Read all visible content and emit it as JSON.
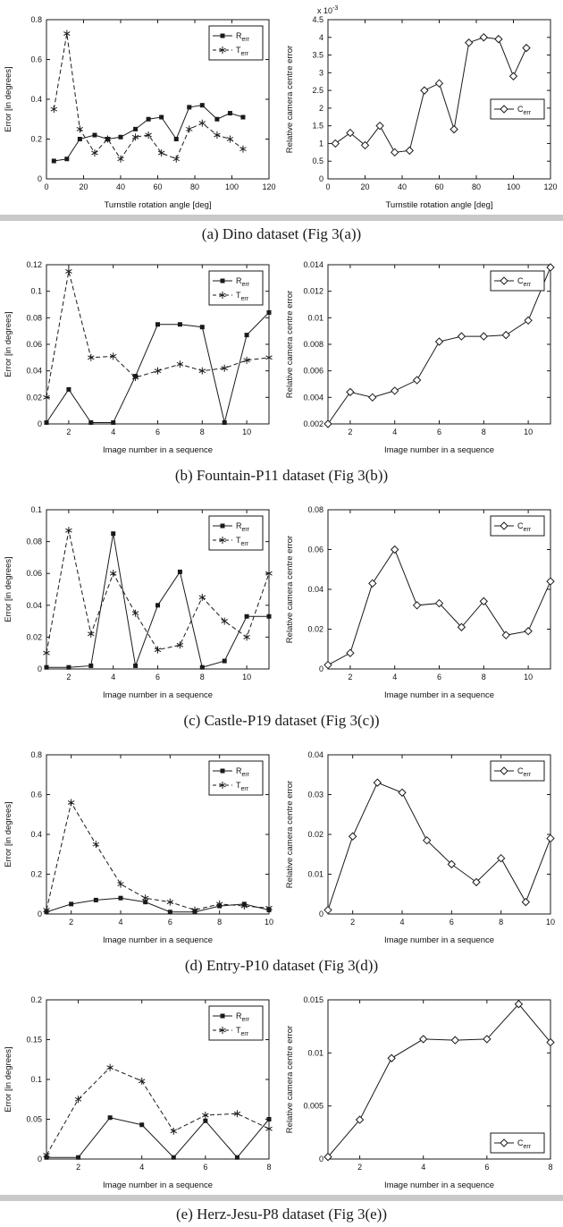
{
  "style": {
    "line_color": "#1a1a1a",
    "background": "#ffffff",
    "separator": "#c9c9c9"
  },
  "captions": [
    "(a) Dino dataset (Fig 3(a))",
    "(b) Fountain-P11 dataset (Fig 3(b))",
    "(c) Castle-P19 dataset (Fig 3(c))",
    "(d) Entry-P10 dataset (Fig 3(d))",
    "(e) Herz-Jesu-P8 dataset (Fig 3(e))"
  ],
  "chart_data": [
    {
      "type": "line",
      "title": "",
      "xlabel": "Turnstile rotation angle [deg]",
      "ylabel": "Error [in degrees]",
      "xlim": [
        0,
        120
      ],
      "ylim": [
        0,
        0.8
      ],
      "xticks": [
        0,
        20,
        40,
        60,
        80,
        100,
        120
      ],
      "yticks": [
        0,
        0.2,
        0.4,
        0.6,
        0.8
      ],
      "legend": {
        "pos": "top-right"
      },
      "series": [
        {
          "name": "R_err",
          "marker": "square",
          "line": "solid",
          "x": [
            4,
            11,
            18,
            26,
            33,
            40,
            48,
            55,
            62,
            70,
            77,
            84,
            92,
            99,
            106
          ],
          "y": [
            0.09,
            0.1,
            0.2,
            0.22,
            0.2,
            0.21,
            0.25,
            0.3,
            0.31,
            0.2,
            0.36,
            0.37,
            0.3,
            0.33,
            0.31
          ]
        },
        {
          "name": "T_err",
          "marker": "asterisk",
          "line": "dashed",
          "x": [
            4,
            11,
            18,
            26,
            33,
            40,
            48,
            55,
            62,
            70,
            77,
            84,
            92,
            99,
            106
          ],
          "y": [
            0.35,
            0.73,
            0.25,
            0.13,
            0.2,
            0.1,
            0.21,
            0.22,
            0.13,
            0.1,
            0.25,
            0.28,
            0.22,
            0.2,
            0.15
          ]
        }
      ]
    },
    {
      "type": "line",
      "title": "",
      "xlabel": "Turnstile rotation angle [deg]",
      "ylabel": "Relative camera centre error",
      "y_exponent": "x 10^-3",
      "xlim": [
        0,
        120
      ],
      "ylim": [
        0,
        4.5
      ],
      "xticks": [
        0,
        20,
        40,
        60,
        80,
        100,
        120
      ],
      "yticks": [
        0,
        0.5,
        1,
        1.5,
        2,
        2.5,
        3,
        3.5,
        4,
        4.5
      ],
      "legend": {
        "pos": "mid-right"
      },
      "series": [
        {
          "name": "C_err",
          "marker": "diamond",
          "line": "solid",
          "x": [
            4,
            12,
            20,
            28,
            36,
            44,
            52,
            60,
            68,
            76,
            84,
            92,
            100,
            107
          ],
          "y": [
            1.0,
            1.3,
            0.95,
            1.5,
            0.75,
            0.8,
            2.5,
            2.7,
            1.4,
            3.85,
            4.0,
            3.95,
            2.9,
            3.7
          ]
        }
      ]
    },
    {
      "type": "line",
      "title": "",
      "xlabel": "Image number in a sequence",
      "ylabel": "Error [in degrees]",
      "xlim": [
        1,
        11
      ],
      "ylim": [
        0,
        0.12
      ],
      "xticks": [
        2,
        4,
        6,
        8,
        10
      ],
      "yticks": [
        0,
        0.02,
        0.04,
        0.06,
        0.08,
        0.1,
        0.12
      ],
      "legend": {
        "pos": "top-right"
      },
      "series": [
        {
          "name": "R_err",
          "marker": "square",
          "line": "solid",
          "x": [
            1,
            2,
            3,
            4,
            5,
            6,
            7,
            8,
            9,
            10,
            11
          ],
          "y": [
            0.001,
            0.026,
            0.001,
            0.001,
            0.036,
            0.075,
            0.075,
            0.073,
            0.001,
            0.067,
            0.084
          ]
        },
        {
          "name": "T_err",
          "marker": "asterisk",
          "line": "dashed",
          "x": [
            1,
            2,
            3,
            4,
            5,
            6,
            7,
            8,
            9,
            10,
            11
          ],
          "y": [
            0.02,
            0.115,
            0.05,
            0.051,
            0.035,
            0.04,
            0.045,
            0.04,
            0.042,
            0.048,
            0.05
          ]
        }
      ]
    },
    {
      "type": "line",
      "title": "",
      "xlabel": "Image number in a sequence",
      "ylabel": "Relative camera centre error",
      "xlim": [
        1,
        11
      ],
      "ylim": [
        0.002,
        0.014
      ],
      "xticks": [
        2,
        4,
        6,
        8,
        10
      ],
      "yticks": [
        0.002,
        0.004,
        0.006,
        0.008,
        0.01,
        0.012,
        0.014
      ],
      "legend": {
        "pos": "top-right"
      },
      "series": [
        {
          "name": "C_err",
          "marker": "diamond",
          "line": "solid",
          "x": [
            1,
            2,
            3,
            4,
            5,
            6,
            7,
            8,
            9,
            10,
            11
          ],
          "y": [
            0.002,
            0.0044,
            0.004,
            0.0045,
            0.0053,
            0.0082,
            0.0086,
            0.0086,
            0.0087,
            0.0098,
            0.0138
          ]
        }
      ]
    },
    {
      "type": "line",
      "title": "",
      "xlabel": "Image number in a sequence",
      "ylabel": "Error [in degrees]",
      "xlim": [
        1,
        11
      ],
      "ylim": [
        0,
        0.1
      ],
      "xticks": [
        2,
        4,
        6,
        8,
        10
      ],
      "yticks": [
        0,
        0.02,
        0.04,
        0.06,
        0.08,
        0.1
      ],
      "legend": {
        "pos": "top-right"
      },
      "series": [
        {
          "name": "R_err",
          "marker": "square",
          "line": "solid",
          "x": [
            1,
            2,
            3,
            4,
            5,
            6,
            7,
            8,
            9,
            10,
            11
          ],
          "y": [
            0.001,
            0.001,
            0.002,
            0.085,
            0.002,
            0.04,
            0.061,
            0.001,
            0.005,
            0.033,
            0.033
          ]
        },
        {
          "name": "T_err",
          "marker": "asterisk",
          "line": "dashed",
          "x": [
            1,
            2,
            3,
            4,
            5,
            6,
            7,
            8,
            9,
            10,
            11
          ],
          "y": [
            0.01,
            0.087,
            0.022,
            0.06,
            0.035,
            0.012,
            0.015,
            0.045,
            0.03,
            0.02,
            0.06
          ]
        }
      ]
    },
    {
      "type": "line",
      "title": "",
      "xlabel": "Image number in a sequence",
      "ylabel": "Relative camera centre error",
      "xlim": [
        1,
        11
      ],
      "ylim": [
        0,
        0.08
      ],
      "xticks": [
        2,
        4,
        6,
        8,
        10
      ],
      "yticks": [
        0,
        0.02,
        0.04,
        0.06,
        0.08
      ],
      "legend": {
        "pos": "top-right"
      },
      "series": [
        {
          "name": "C_err",
          "marker": "diamond",
          "line": "solid",
          "x": [
            1,
            2,
            3,
            4,
            5,
            6,
            7,
            8,
            9,
            10,
            11
          ],
          "y": [
            0.002,
            0.008,
            0.043,
            0.06,
            0.032,
            0.033,
            0.021,
            0.034,
            0.017,
            0.019,
            0.044
          ]
        }
      ]
    },
    {
      "type": "line",
      "title": "",
      "xlabel": "Image number in a sequence",
      "ylabel": "Error [in degrees]",
      "xlim": [
        1,
        10
      ],
      "ylim": [
        0,
        0.8
      ],
      "xticks": [
        2,
        4,
        6,
        8,
        10
      ],
      "yticks": [
        0,
        0.2,
        0.4,
        0.6,
        0.8
      ],
      "legend": {
        "pos": "top-right"
      },
      "series": [
        {
          "name": "R_err",
          "marker": "square",
          "line": "solid",
          "x": [
            1,
            2,
            3,
            4,
            5,
            6,
            7,
            8,
            9,
            10
          ],
          "y": [
            0.01,
            0.05,
            0.07,
            0.08,
            0.06,
            0.01,
            0.01,
            0.04,
            0.05,
            0.02
          ]
        },
        {
          "name": "T_err",
          "marker": "asterisk",
          "line": "dashed",
          "x": [
            1,
            2,
            3,
            4,
            5,
            6,
            7,
            8,
            9,
            10
          ],
          "y": [
            0.02,
            0.56,
            0.35,
            0.15,
            0.08,
            0.06,
            0.02,
            0.05,
            0.04,
            0.03
          ]
        }
      ]
    },
    {
      "type": "line",
      "title": "",
      "xlabel": "Image number in a sequence",
      "ylabel": "Relative camera centre error",
      "xlim": [
        1,
        10
      ],
      "ylim": [
        0,
        0.04
      ],
      "xticks": [
        2,
        4,
        6,
        8,
        10
      ],
      "yticks": [
        0,
        0.01,
        0.02,
        0.03,
        0.04
      ],
      "legend": {
        "pos": "top-right"
      },
      "series": [
        {
          "name": "C_err",
          "marker": "diamond",
          "line": "solid",
          "x": [
            1,
            2,
            3,
            4,
            5,
            6,
            7,
            8,
            9,
            10
          ],
          "y": [
            0.001,
            0.0195,
            0.033,
            0.0305,
            0.0185,
            0.0125,
            0.008,
            0.014,
            0.003,
            0.019
          ]
        }
      ]
    },
    {
      "type": "line",
      "title": "",
      "xlabel": "Image number in a sequence",
      "ylabel": "Error [in degrees]",
      "xlim": [
        1,
        8
      ],
      "ylim": [
        0,
        0.2
      ],
      "xticks": [
        2,
        4,
        6,
        8
      ],
      "yticks": [
        0,
        0.05,
        0.1,
        0.15,
        0.2
      ],
      "legend": {
        "pos": "top-right"
      },
      "series": [
        {
          "name": "R_err",
          "marker": "square",
          "line": "solid",
          "x": [
            1,
            2,
            3,
            4,
            5,
            6,
            7,
            8
          ],
          "y": [
            0.002,
            0.002,
            0.052,
            0.043,
            0.002,
            0.048,
            0.002,
            0.05
          ]
        },
        {
          "name": "T_err",
          "marker": "asterisk",
          "line": "dashed",
          "x": [
            1,
            2,
            3,
            4,
            5,
            6,
            7,
            8
          ],
          "y": [
            0.005,
            0.075,
            0.115,
            0.098,
            0.035,
            0.055,
            0.057,
            0.038
          ]
        }
      ]
    },
    {
      "type": "line",
      "title": "",
      "xlabel": "Image number in a sequence",
      "ylabel": "Relative camera centre error",
      "xlim": [
        1,
        8
      ],
      "ylim": [
        0,
        0.015
      ],
      "xticks": [
        2,
        4,
        6,
        8
      ],
      "yticks": [
        0,
        0.005,
        0.01,
        0.015
      ],
      "legend": {
        "pos": "bottom-right"
      },
      "series": [
        {
          "name": "C_err",
          "marker": "diamond",
          "line": "solid",
          "x": [
            1,
            2,
            3,
            4,
            5,
            6,
            7,
            8
          ],
          "y": [
            0.0002,
            0.0037,
            0.0095,
            0.0113,
            0.0112,
            0.0113,
            0.0146,
            0.011
          ]
        }
      ]
    }
  ]
}
